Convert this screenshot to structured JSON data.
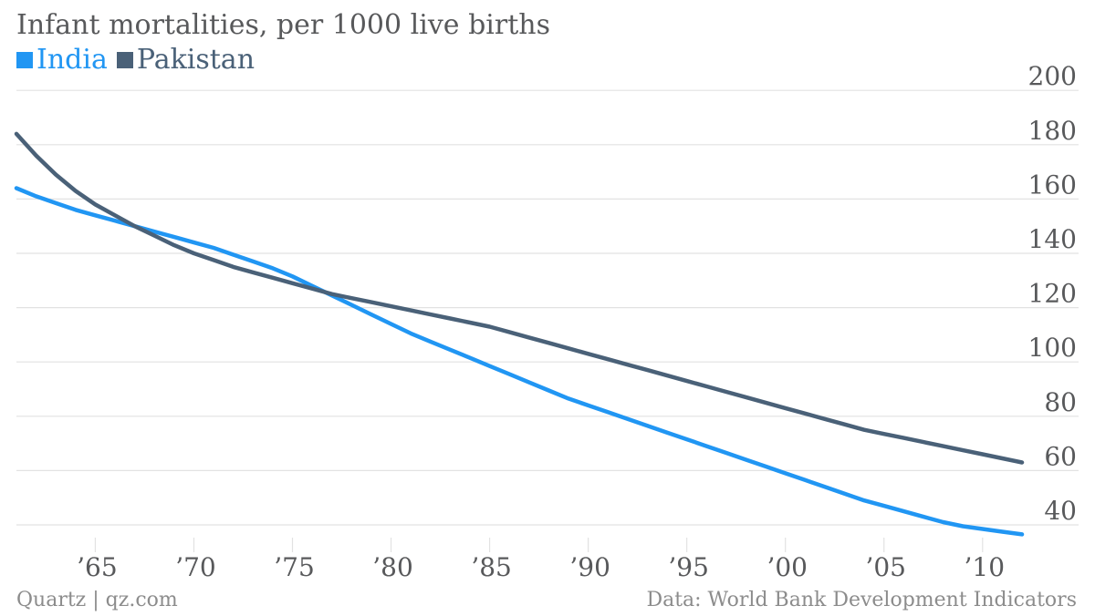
{
  "colors": {
    "india": "#2196f3",
    "pakistan": "#4a6178",
    "grid": "#e2e2e2",
    "tick_text": "#58595b",
    "footer_text": "#8c8c8c"
  },
  "footer": {
    "source_left": "Quartz | qz.com",
    "source_right": "Data: World Bank Development Indicators"
  },
  "chart_data": {
    "type": "line",
    "title": "Infant mortalities, per 1000 live births",
    "xlabel": "",
    "ylabel": "",
    "xlim": [
      1961,
      2012
    ],
    "ylim": [
      35,
      200
    ],
    "grid": true,
    "legend_placement": "top-left",
    "x_ticks": [
      1965,
      1970,
      1975,
      1980,
      1985,
      1990,
      1995,
      2000,
      2005,
      2010
    ],
    "x_tick_labels": [
      "’65",
      "’70",
      "’75",
      "’80",
      "’85",
      "’90",
      "’95",
      "’00",
      "’05",
      "’10"
    ],
    "y_ticks": [
      40,
      60,
      80,
      100,
      120,
      140,
      160,
      180,
      200
    ],
    "y_tick_labels": [
      "40",
      "60",
      "80",
      "100",
      "120",
      "140",
      "160",
      "180",
      "200"
    ],
    "x": [
      1961,
      1962,
      1963,
      1964,
      1965,
      1966,
      1967,
      1968,
      1969,
      1970,
      1971,
      1972,
      1973,
      1974,
      1975,
      1976,
      1977,
      1978,
      1979,
      1980,
      1981,
      1982,
      1983,
      1984,
      1985,
      1986,
      1987,
      1988,
      1989,
      1990,
      1991,
      1992,
      1993,
      1994,
      1995,
      1996,
      1997,
      1998,
      1999,
      2000,
      2001,
      2002,
      2003,
      2004,
      2005,
      2006,
      2007,
      2008,
      2009,
      2010,
      2011,
      2012
    ],
    "series": [
      {
        "name": "India",
        "values": [
          164,
          161,
          158.5,
          156,
          154,
          152,
          150,
          148,
          146,
          144,
          142,
          139.5,
          137,
          134.5,
          131.5,
          128,
          124.5,
          121,
          117.5,
          114,
          110.5,
          107.5,
          104.5,
          101.5,
          98.5,
          95.5,
          92.5,
          89.5,
          86.5,
          84,
          81.5,
          79,
          76.5,
          74,
          71.5,
          69,
          66.5,
          64,
          61.5,
          59,
          56.5,
          54,
          51.5,
          49,
          47,
          45,
          43,
          41,
          39.5,
          38.5,
          37.5,
          36.5
        ]
      },
      {
        "name": "Pakistan",
        "values": [
          184,
          176,
          169,
          163,
          158,
          154,
          150,
          146.5,
          143,
          140,
          137.5,
          135,
          133,
          131,
          129,
          127,
          125,
          123.5,
          122,
          120.5,
          119,
          117.5,
          116,
          114.5,
          113,
          111,
          109,
          107,
          105,
          103,
          101,
          99,
          97,
          95,
          93,
          91,
          89,
          87,
          85,
          83,
          81,
          79,
          77,
          75,
          73.5,
          72,
          70.5,
          69,
          67.5,
          66,
          64.5,
          63
        ]
      }
    ]
  }
}
